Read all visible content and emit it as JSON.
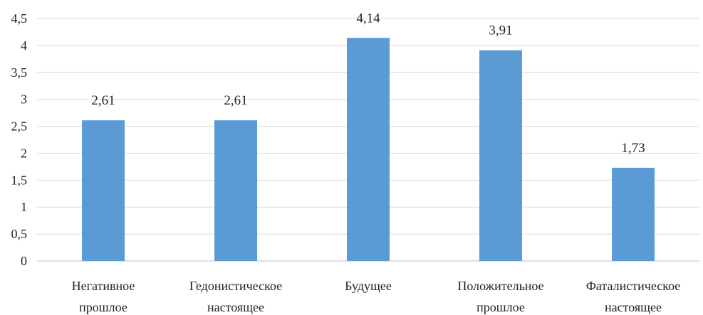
{
  "chart_data": {
    "type": "bar",
    "title": "",
    "xlabel": "",
    "ylabel": "",
    "ylim": [
      0,
      4.5
    ],
    "yticks": [
      "0",
      "0,5",
      "1",
      "1,5",
      "2",
      "2,5",
      "3",
      "3,5",
      "4",
      "4,5"
    ],
    "grid": true,
    "legend": "none",
    "bar_color": "#5b9bd5",
    "categories": [
      [
        "Негативное",
        "прошлое"
      ],
      [
        "Гедонистическое",
        "настоящее"
      ],
      [
        "Будущее"
      ],
      [
        "Положительное",
        "прошлое"
      ],
      [
        "Фаталистическое",
        "настоящее"
      ]
    ],
    "values": [
      2.61,
      2.61,
      4.14,
      3.91,
      1.73
    ],
    "data_labels": [
      "2,61",
      "2,61",
      "4,14",
      "3,91",
      "1,73"
    ]
  }
}
